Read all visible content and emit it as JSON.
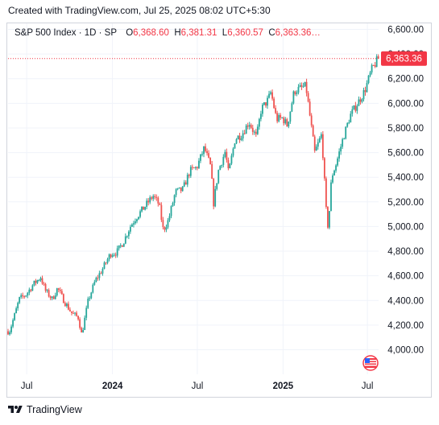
{
  "header": {
    "text": "Created with TradingView.com, Jul 25, 2025 08:02 UTC+5:30"
  },
  "legend": {
    "symbol": "S&P 500 Index · 1D · SP",
    "o_label": "O",
    "o_value": "6,368.60",
    "h_label": "H",
    "h_value": "6,381.31",
    "l_label": "L",
    "l_value": "6,360.57",
    "c_label": "C",
    "c_value": "6,363.36…"
  },
  "footer": {
    "brand": "TradingView"
  },
  "colors": {
    "up": "#26a69a",
    "down": "#ef5350",
    "last_price": "#f23645",
    "grid": "#f0f3fa",
    "border": "#d1d4dc"
  },
  "chart_data": {
    "type": "line",
    "style": "candlestick",
    "title": "S&P 500 Index · 1D · SP",
    "xlabel": "",
    "ylabel": "",
    "x_ticks": [
      "Jul",
      "2024",
      "Jul",
      "2025",
      "Jul"
    ],
    "y_ticks": [
      "4,000.00",
      "4,200.00",
      "4,400.00",
      "4,600.00",
      "4,800.00",
      "5,000.00",
      "5,200.00",
      "5,400.00",
      "5,600.00",
      "5,800.00",
      "6,000.00",
      "6,200.00",
      "6,400.00",
      "6,600.00"
    ],
    "ylim": [
      4000,
      6600
    ],
    "last_price": 6363.36,
    "last_price_label": "6,363.36",
    "grid": true,
    "series": [
      {
        "x": [
          "2023-05-25",
          "2023-06-05",
          "2023-06-15",
          "2023-06-30",
          "2023-07-15",
          "2023-07-31",
          "2023-08-10",
          "2023-08-25",
          "2023-09-05",
          "2023-09-20",
          "2023-10-05",
          "2023-10-20",
          "2023-10-27",
          "2023-11-10",
          "2023-11-25",
          "2023-12-10",
          "2023-12-28",
          "2024-01-10",
          "2024-01-25",
          "2024-02-08",
          "2024-02-22",
          "2024-03-08",
          "2024-03-28",
          "2024-04-10",
          "2024-04-19",
          "2024-04-30",
          "2024-05-15",
          "2024-05-31",
          "2024-06-15",
          "2024-06-30",
          "2024-07-16",
          "2024-07-30",
          "2024-08-05",
          "2024-08-15",
          "2024-08-30",
          "2024-09-06",
          "2024-09-20",
          "2024-10-05",
          "2024-10-20",
          "2024-11-05",
          "2024-11-15",
          "2024-11-30",
          "2024-12-06",
          "2024-12-18",
          "2024-12-31",
          "2025-01-10",
          "2025-01-25",
          "2025-02-19",
          "2025-03-10",
          "2025-03-25",
          "2025-04-04",
          "2025-04-08",
          "2025-04-15",
          "2025-04-25",
          "2025-05-10",
          "2025-05-25",
          "2025-06-10",
          "2025-06-25",
          "2025-07-10",
          "2025-07-24"
        ],
        "close": [
          4150,
          4280,
          4410,
          4450,
          4530,
          4590,
          4480,
          4410,
          4500,
          4390,
          4300,
          4260,
          4120,
          4400,
          4560,
          4650,
          4780,
          4790,
          4880,
          5000,
          5080,
          5150,
          5250,
          5180,
          4970,
          5050,
          5280,
          5300,
          5450,
          5480,
          5640,
          5480,
          5190,
          5450,
          5610,
          5430,
          5710,
          5750,
          5850,
          5720,
          5950,
          6030,
          6090,
          5870,
          5880,
          5820,
          6100,
          6140,
          5600,
          5750,
          5100,
          4980,
          5400,
          5510,
          5720,
          5900,
          6000,
          6100,
          6270,
          6363.36
        ]
      }
    ]
  }
}
